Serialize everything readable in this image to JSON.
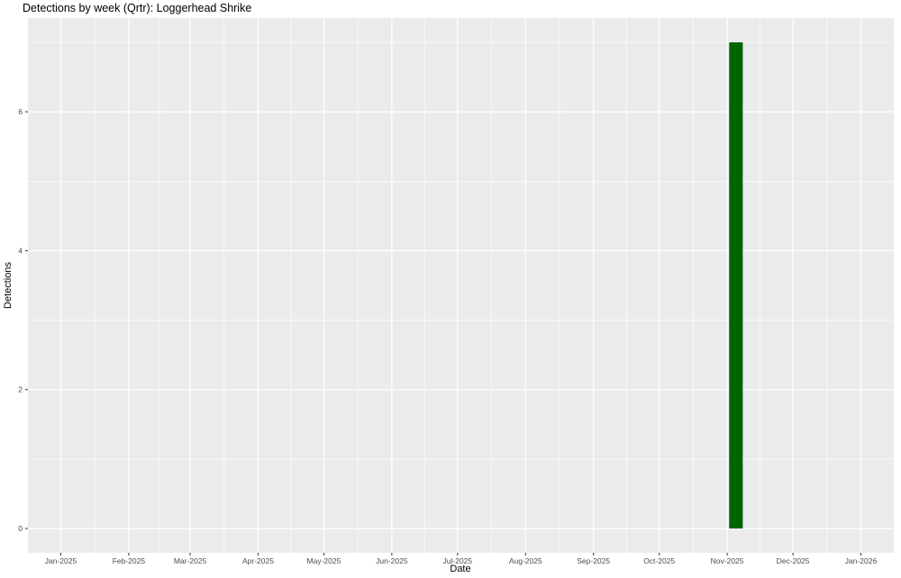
{
  "chart_data": {
    "type": "bar",
    "title": "Detections by week (Qrtr): Loggerhead Shrike",
    "xlabel": "Date",
    "ylabel": "Detections",
    "x_ticks": [
      "2025-01-01",
      "2025-02-01",
      "2025-03-01",
      "2025-04-01",
      "2025-05-01",
      "2025-06-01",
      "2025-07-01",
      "2025-08-01",
      "2025-09-01",
      "2025-10-01",
      "2025-11-01",
      "2025-12-01",
      "2026-01-01"
    ],
    "x_tick_labels": [
      "Jan-2025",
      "Feb-2025",
      "Mar-2025",
      "Apr-2025",
      "May-2025",
      "Jun-2025",
      "Jul-2025",
      "Aug-2025",
      "Sep-2025",
      "Oct-2025",
      "Nov-2025",
      "Dec-2025",
      "Jan-2026"
    ],
    "y_ticks": [
      0,
      2,
      4,
      6
    ],
    "y_tick_labels": [
      "0",
      "2",
      "4",
      "6"
    ],
    "xlim": [
      "2024-12-17",
      "2026-01-16"
    ],
    "ylim": [
      -0.35,
      7.35
    ],
    "grid": true,
    "bars": [
      {
        "x": "2025-11-05",
        "value": 7
      }
    ],
    "bar_width_days": 6.2,
    "colors": {
      "bar": "#006400",
      "panel": "#ebebeb",
      "grid": "#ffffff"
    }
  }
}
